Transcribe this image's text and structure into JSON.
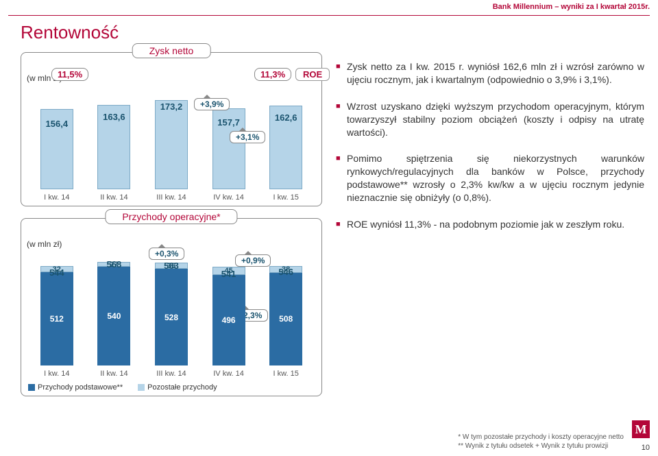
{
  "header": {
    "banner": "Bank Millennium – wyniki za I kwartał 2015r.",
    "banner_color": "#b30638",
    "title": "Rentowność",
    "title_color": "#b30638",
    "page_number": "10",
    "logo_text": "M"
  },
  "colors": {
    "brand": "#b30638",
    "bar_primary": "#b5d4e8",
    "bar_dark": "#2b6ca3",
    "bar_border": "#7ca9c6",
    "pct_text": "#1a536e",
    "axis_text": "#555"
  },
  "chart1": {
    "title": "Zysk netto",
    "type": "bar",
    "unit": "(w mln zł)",
    "ylim": [
      0,
      200
    ],
    "categories": [
      "I kw. 14",
      "II kw. 14",
      "III kw. 14",
      "IV kw. 14",
      "I kw. 15"
    ],
    "values": [
      156.4,
      163.6,
      173.2,
      157.7,
      162.6
    ],
    "value_labels": [
      "156,4",
      "163,6",
      "173,2",
      "157,7",
      "162,6"
    ],
    "bar_color": "#b5d4e8",
    "pct_callouts": [
      {
        "label": "11,5%",
        "index": 0
      },
      {
        "label": "11,3%",
        "index": 4
      }
    ],
    "roe_tag": "ROE",
    "delta_annual": "+3,9%",
    "delta_quarter": "+3,1%"
  },
  "chart2": {
    "title": "Przychody operacyjne*",
    "type": "stacked-bar",
    "unit": "(w mln zł)",
    "ylim": [
      0,
      620
    ],
    "categories": [
      "I kw. 14",
      "II kw. 14",
      "III kw. 14",
      "IV kw. 14",
      "I kw. 15"
    ],
    "totals": [
      "544",
      "568",
      "563",
      "541",
      "546"
    ],
    "segments": {
      "podstawowe": {
        "label": "Przychody podstawowe**",
        "color": "#2b6ca3",
        "values": [
          512,
          540,
          528,
          496,
          508
        ]
      },
      "pozostale": {
        "label": "Pozostałe przychody",
        "color": "#b5d4e8",
        "values": [
          32,
          27,
          35,
          45,
          38
        ]
      }
    },
    "delta_annual_top": "+0,3%",
    "delta_quarter_top": "+0,9%",
    "delta_quarter_base": "+2,3%"
  },
  "bullets": [
    "Zysk netto za I kw. 2015 r. wyniósł 162,6 mln zł i wzrósł zarówno w ujęciu rocznym, jak i kwartalnym (odpowiednio o 3,9% i 3,1%).",
    "Wzrost uzyskano dzięki wyższym przychodom operacyjnym, którym towarzyszył stabilny poziom obciążeń (koszty i odpisy na utratę wartości).",
    "Pomimo spiętrzenia się niekorzystnych warunków rynkowych/regulacyjnych dla banków w Polsce, przychody podstawowe** wzrosły o 2,3% kw/kw a w ujęciu rocznym jedynie nieznacznie się obniżyły (o 0,8%).",
    "ROE wyniósł 11,3% - na podobnym poziomie jak w zeszłym roku."
  ],
  "footnote": {
    "line1": "* W tym pozostałe przychody i koszty operacyjne netto",
    "line2": "** Wynik z tytułu odsetek + Wynik z tytułu prowizji"
  }
}
